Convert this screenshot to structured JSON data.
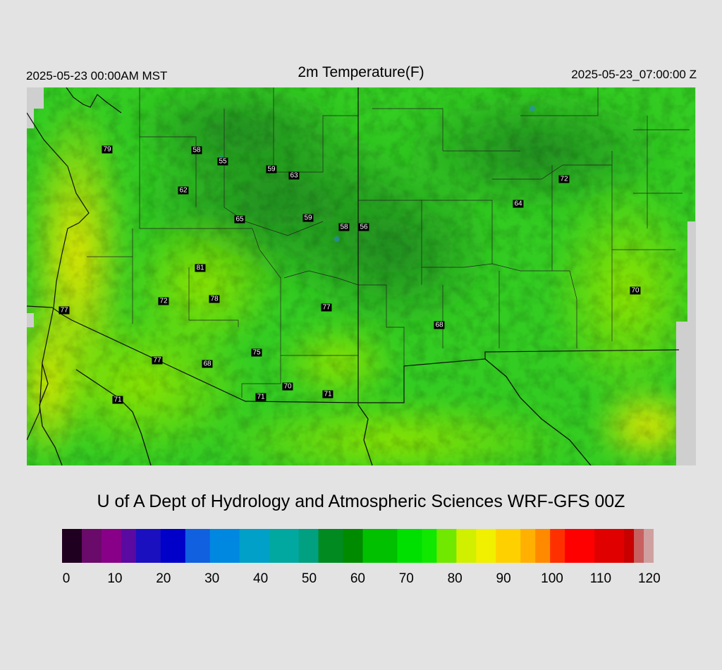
{
  "header": {
    "local_time": "2025-05-23 00:00AM MST",
    "title": "2m Temperature(F)",
    "valid_time": "2025-05-23_07:00:00 Z"
  },
  "credit": "U of A Dept of Hydrology and Atmospheric Sciences WRF-GFS 00Z",
  "colorbar": {
    "min": 0,
    "max": 120,
    "ticks": [
      "0",
      "10",
      "20",
      "30",
      "40",
      "50",
      "60",
      "70",
      "80",
      "90",
      "100",
      "110",
      "120"
    ],
    "colors": [
      [
        0,
        "#200020"
      ],
      [
        4,
        "#6a0a6a"
      ],
      [
        8,
        "#880088"
      ],
      [
        12,
        "#5a0aa0"
      ],
      [
        15,
        "#1a10c0"
      ],
      [
        20,
        "#0000c8"
      ],
      [
        25,
        "#1060e0"
      ],
      [
        30,
        "#0088e0"
      ],
      [
        36,
        "#00a0c8"
      ],
      [
        42,
        "#00a8a0"
      ],
      [
        48,
        "#00a080"
      ],
      [
        52,
        "#008a20"
      ],
      [
        57,
        "#008a00"
      ],
      [
        61,
        "#00c000"
      ],
      [
        68,
        "#00e000"
      ],
      [
        73,
        "#10e800"
      ],
      [
        76,
        "#70e800"
      ],
      [
        80,
        "#d0f000"
      ],
      [
        84,
        "#f0f000"
      ],
      [
        88,
        "#ffd000"
      ],
      [
        93,
        "#ffb000"
      ],
      [
        96,
        "#ff8a00"
      ],
      [
        99,
        "#ff3000"
      ],
      [
        102,
        "#ff0000"
      ],
      [
        108,
        "#e00000"
      ],
      [
        114,
        "#c80000"
      ],
      [
        116,
        "#c86060"
      ],
      [
        118,
        "#d0a0a0"
      ],
      [
        120,
        "#d8d8d8"
      ]
    ]
  },
  "stations": [
    {
      "label": "79",
      "t": 79
    },
    {
      "label": "58",
      "t": 58
    },
    {
      "label": "55",
      "t": 55
    },
    {
      "label": "59",
      "t": 59
    },
    {
      "label": "63",
      "t": 63
    },
    {
      "label": "62",
      "t": 62
    },
    {
      "label": "65",
      "t": 65
    },
    {
      "label": "59",
      "t": 59
    },
    {
      "label": "58",
      "t": 58
    },
    {
      "label": "56",
      "t": 56
    },
    {
      "label": "72",
      "t": 72
    },
    {
      "label": "64",
      "t": 64
    },
    {
      "label": "81",
      "t": 81
    },
    {
      "label": "72",
      "t": 72
    },
    {
      "label": "78",
      "t": 78
    },
    {
      "label": "77",
      "t": 77
    },
    {
      "label": "77",
      "t": 77
    },
    {
      "label": "70",
      "t": 70
    },
    {
      "label": "68",
      "t": 68
    },
    {
      "label": "75",
      "t": 75
    },
    {
      "label": "77",
      "t": 77
    },
    {
      "label": "68",
      "t": 68
    },
    {
      "label": "71",
      "t": 71
    },
    {
      "label": "70",
      "t": 70
    },
    {
      "label": "71",
      "t": 71
    },
    {
      "label": "71",
      "t": 71
    }
  ]
}
